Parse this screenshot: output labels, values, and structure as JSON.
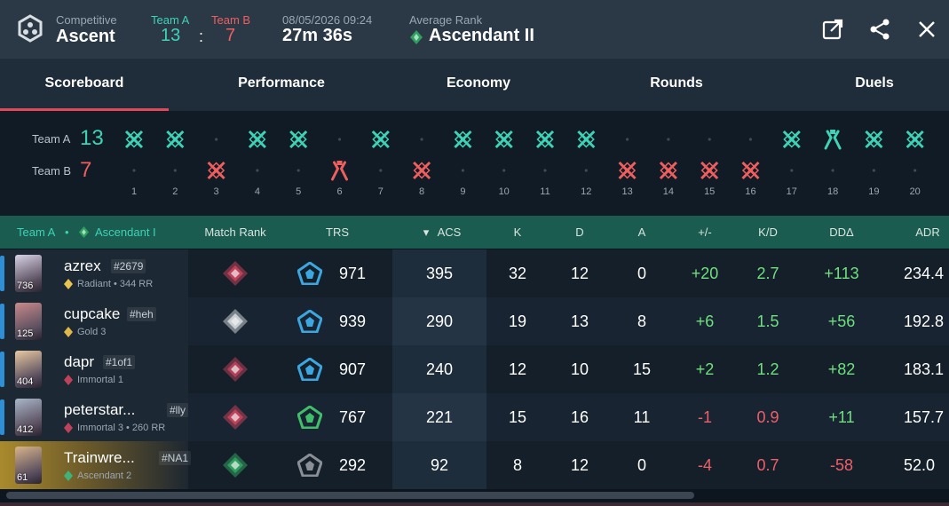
{
  "header": {
    "mode": "Competitive",
    "map": "Ascent",
    "team_a_label": "Team A",
    "team_b_label": "Team B",
    "team_a_score": "13",
    "separator": ":",
    "team_b_score": "7",
    "date": "08/05/2026 09:24",
    "duration": "27m 36s",
    "avg_rank_label": "Average Rank",
    "avg_rank": "Ascendant II",
    "icons": [
      "open-external-icon",
      "share-icon",
      "close-icon"
    ]
  },
  "tabs": [
    {
      "label": "Scoreboard",
      "active": true
    },
    {
      "label": "Performance",
      "active": false
    },
    {
      "label": "Economy",
      "active": false
    },
    {
      "label": "Rounds",
      "active": false
    },
    {
      "label": "Duels",
      "active": false
    }
  ],
  "timeline": {
    "team_a_label": "Team A",
    "team_a_score": "13",
    "team_b_label": "Team B",
    "team_b_score": "7",
    "rounds": [
      {
        "n": "1",
        "winner": "A",
        "type": "elimination"
      },
      {
        "n": "2",
        "winner": "A",
        "type": "elimination"
      },
      {
        "n": "3",
        "winner": "B",
        "type": "elimination"
      },
      {
        "n": "4",
        "winner": "A",
        "type": "elimination"
      },
      {
        "n": "5",
        "winner": "A",
        "type": "elimination"
      },
      {
        "n": "6",
        "winner": "B",
        "type": "defuse"
      },
      {
        "n": "7",
        "winner": "A",
        "type": "elimination"
      },
      {
        "n": "8",
        "winner": "B",
        "type": "elimination"
      },
      {
        "n": "9",
        "winner": "A",
        "type": "elimination"
      },
      {
        "n": "10",
        "winner": "A",
        "type": "elimination"
      },
      {
        "n": "11",
        "winner": "A",
        "type": "elimination"
      },
      {
        "n": "12",
        "winner": "A",
        "type": "elimination"
      },
      {
        "n": "13",
        "winner": "B",
        "type": "elimination"
      },
      {
        "n": "14",
        "winner": "B",
        "type": "elimination"
      },
      {
        "n": "15",
        "winner": "B",
        "type": "elimination"
      },
      {
        "n": "16",
        "winner": "B",
        "type": "elimination"
      },
      {
        "n": "17",
        "winner": "A",
        "type": "elimination"
      },
      {
        "n": "18",
        "winner": "A",
        "type": "defuse"
      },
      {
        "n": "19",
        "winner": "A",
        "type": "elimination"
      },
      {
        "n": "20",
        "winner": "A",
        "type": "elimination"
      }
    ],
    "colors": {
      "team_a": "#3ed3b6",
      "team_b": "#ef5f5f",
      "dot": "#3d4a57"
    }
  },
  "table": {
    "team_label": "Team A",
    "dot": "•",
    "team_rank": "Ascendant I",
    "columns": [
      "Match Rank",
      "TRS",
      "ACS",
      "K",
      "D",
      "A",
      "+/-",
      "K/D",
      "DDΔ",
      "ADR"
    ],
    "sort_arrow": "▾",
    "players": [
      {
        "name": "azrex",
        "tag": "#2679",
        "level": "736",
        "rank": "Radiant • 344 RR",
        "rank_color": "#e9c24f",
        "match_rank_color": "#c0425a",
        "trs": "971",
        "trs_color": "#3ba6e0",
        "acs": "395",
        "k": "32",
        "d": "12",
        "a": "0",
        "pm": "+20",
        "kd": "2.7",
        "dd": "+113",
        "adr": "234.4",
        "pm_pos": true,
        "kd_pos": true,
        "dd_pos": true,
        "highlight": false
      },
      {
        "name": "cupcake",
        "tag": "#heh",
        "level": "125",
        "rank": "Gold 3",
        "rank_color": "#e0b84a",
        "match_rank_color": "#c9ced3",
        "trs": "939",
        "trs_color": "#3ba6e0",
        "acs": "290",
        "k": "19",
        "d": "13",
        "a": "8",
        "pm": "+6",
        "kd": "1.5",
        "dd": "+56",
        "adr": "192.8",
        "pm_pos": true,
        "kd_pos": true,
        "dd_pos": true,
        "highlight": false
      },
      {
        "name": "dapr",
        "tag": "#1of1",
        "level": "404",
        "rank": "Immortal 1",
        "rank_color": "#c0425a",
        "match_rank_color": "#b3405a",
        "trs": "907",
        "trs_color": "#3ba6e0",
        "acs": "240",
        "k": "12",
        "d": "10",
        "a": "15",
        "pm": "+2",
        "kd": "1.2",
        "dd": "+82",
        "adr": "183.1",
        "pm_pos": true,
        "kd_pos": true,
        "dd_pos": true,
        "highlight": false
      },
      {
        "name": "peterstar...",
        "tag": "#lly",
        "level": "412",
        "rank": "Immortal 3 • 260 RR",
        "rank_color": "#c0425a",
        "match_rank_color": "#c0425a",
        "trs": "767",
        "trs_color": "#3fbf6a",
        "acs": "221",
        "k": "15",
        "d": "16",
        "a": "11",
        "pm": "-1",
        "kd": "0.9",
        "dd": "+11",
        "adr": "157.7",
        "pm_pos": false,
        "kd_pos": false,
        "dd_pos": true,
        "highlight": false
      },
      {
        "name": "Trainwre...",
        "tag": "#NA1",
        "level": "61",
        "rank": "Ascendant 2",
        "rank_color": "#3fb27a",
        "match_rank_color": "#2f9e5f",
        "trs": "292",
        "trs_color": "#8a8f96",
        "acs": "92",
        "k": "8",
        "d": "12",
        "a": "0",
        "pm": "-4",
        "kd": "0.7",
        "dd": "-58",
        "adr": "52.0",
        "pm_pos": false,
        "kd_pos": false,
        "dd_pos": false,
        "highlight": true
      }
    ]
  }
}
